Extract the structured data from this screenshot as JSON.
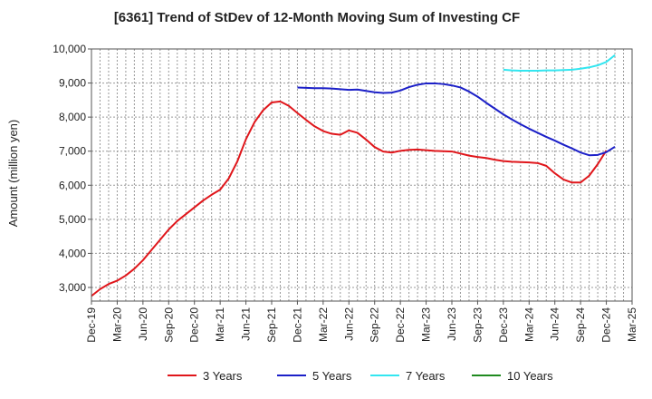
{
  "chart_data": {
    "type": "line",
    "title": "[6361]  Trend of StDev of 12-Month Moving Sum of Investing CF",
    "xlabel": "",
    "ylabel": "Amount (million yen)",
    "ylim": [
      2600,
      10000
    ],
    "yticks": [
      3000,
      4000,
      5000,
      6000,
      7000,
      8000,
      9000,
      10000
    ],
    "ytick_labels": [
      "3,000",
      "4,000",
      "5,000",
      "6,000",
      "7,000",
      "8,000",
      "9,000",
      "10,000"
    ],
    "x_start": "Dec-19",
    "x_tick_labels": [
      "Dec-19",
      "Mar-20",
      "Jun-20",
      "Sep-20",
      "Dec-20",
      "Mar-21",
      "Jun-21",
      "Sep-21",
      "Dec-21",
      "Mar-22",
      "Jun-22",
      "Sep-22",
      "Dec-22",
      "Mar-23",
      "Jun-23",
      "Sep-23",
      "Dec-23",
      "Mar-24",
      "Jun-24",
      "Sep-24",
      "Dec-24",
      "Mar-25"
    ],
    "grid": true,
    "legend_position": "bottom",
    "series": [
      {
        "name": "3 Years",
        "color": "#e0161b",
        "start_index": 0,
        "values": [
          2750,
          2950,
          3100,
          3200,
          3350,
          3550,
          3800,
          4100,
          4400,
          4700,
          4950,
          5150,
          5350,
          5550,
          5720,
          5870,
          6200,
          6700,
          7350,
          7850,
          8200,
          8430,
          8460,
          8330,
          8120,
          7920,
          7730,
          7590,
          7510,
          7480,
          7610,
          7540,
          7340,
          7120,
          6990,
          6960,
          7010,
          7040,
          7050,
          7030,
          7010,
          7000,
          6990,
          6930,
          6870,
          6830,
          6800,
          6750,
          6710,
          6690,
          6680,
          6670,
          6650,
          6570,
          6350,
          6170,
          6080,
          6080,
          6280,
          6620,
          7020
        ]
      },
      {
        "name": "5 Years",
        "color": "#1c20c8",
        "start_index": 24,
        "values": [
          8870,
          8860,
          8850,
          8850,
          8840,
          8820,
          8800,
          8810,
          8770,
          8730,
          8710,
          8720,
          8780,
          8880,
          8950,
          8990,
          8990,
          8970,
          8930,
          8870,
          8750,
          8600,
          8420,
          8250,
          8080,
          7930,
          7790,
          7660,
          7540,
          7420,
          7310,
          7190,
          7080,
          6960,
          6880,
          6890,
          6970,
          7130
        ]
      },
      {
        "name": "7 Years",
        "color": "#33e6f0",
        "start_index": 48,
        "values": [
          9390,
          9370,
          9360,
          9360,
          9360,
          9370,
          9370,
          9380,
          9390,
          9420,
          9460,
          9520,
          9620,
          9820
        ]
      },
      {
        "name": "10 Years",
        "color": "#1f8a1f",
        "start_index": 0,
        "values": []
      }
    ]
  }
}
